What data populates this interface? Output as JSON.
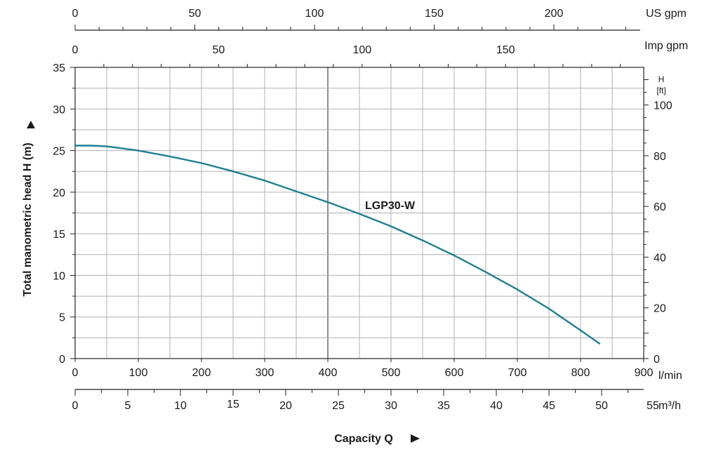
{
  "chart_data": {
    "type": "line",
    "xlabel": "Capacity Q",
    "ylabel": "Total manometric head H (m)",
    "xlim": [
      0,
      900
    ],
    "ylim": [
      0,
      35
    ],
    "x_unit": "l/min",
    "x_ticks": [
      "0",
      "100",
      "200",
      "300",
      "400",
      "500",
      "600",
      "700",
      "800",
      "900"
    ],
    "y_ticks": [
      "0",
      "5",
      "10",
      "15",
      "20",
      "25",
      "30",
      "35"
    ],
    "grid": true,
    "series": [
      {
        "name": "LGP30-W",
        "color": "#1f7f93",
        "x": [
          0,
          25,
          50,
          100,
          150,
          200,
          250,
          300,
          350,
          400,
          450,
          500,
          550,
          600,
          650,
          700,
          750,
          800,
          830
        ],
        "y": [
          25.6,
          25.6,
          25.5,
          25.0,
          24.3,
          23.5,
          22.5,
          21.4,
          20.1,
          18.8,
          17.4,
          15.9,
          14.2,
          12.4,
          10.4,
          8.3,
          6.0,
          3.4,
          1.8
        ]
      }
    ],
    "right_axis": {
      "label": "H",
      "unit": "[ft]",
      "ticks": [
        "0",
        "20",
        "40",
        "60",
        "80",
        "100"
      ]
    },
    "secondary_x_axes": [
      {
        "unit": "US gpm",
        "ticks": [
          "0",
          "50",
          "100",
          "150",
          "200"
        ]
      },
      {
        "unit": "Imp gpm",
        "ticks": [
          "0",
          "50",
          "100",
          "150"
        ]
      },
      {
        "unit": "m³/h",
        "ticks": [
          "0",
          "5",
          "10",
          "15",
          "20",
          "25",
          "30",
          "35",
          "40",
          "45",
          "50",
          "55"
        ]
      }
    ],
    "axis_color": "#222222",
    "grid_color": "#b0b0b0"
  }
}
